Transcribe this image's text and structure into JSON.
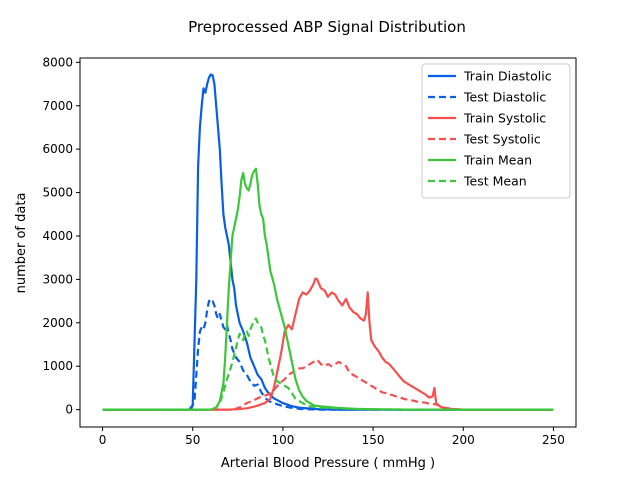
{
  "chart_data": {
    "type": "line",
    "title": "Preprocessed ABP Signal Distribution",
    "xlabel": "Arterial Blood Pressure ( mmHg )",
    "ylabel": "number of data",
    "xlim": [
      -12.5,
      262.5
    ],
    "ylim": [
      -400,
      8100
    ],
    "xticks": [
      0,
      50,
      100,
      150,
      200,
      250
    ],
    "yticks": [
      0,
      1000,
      2000,
      3000,
      4000,
      5000,
      6000,
      7000,
      8000
    ],
    "legend_position": "top-right",
    "grid": false,
    "series": [
      {
        "name": "Train Diastolic",
        "color": "#0a5ee6",
        "dash": "solid",
        "points": [
          [
            0,
            0
          ],
          [
            48,
            0
          ],
          [
            50,
            100
          ],
          [
            52,
            3000
          ],
          [
            53,
            5600
          ],
          [
            54,
            6500
          ],
          [
            55,
            7000
          ],
          [
            56,
            7400
          ],
          [
            57,
            7300
          ],
          [
            58,
            7500
          ],
          [
            59,
            7650
          ],
          [
            60,
            7720
          ],
          [
            61,
            7700
          ],
          [
            62,
            7500
          ],
          [
            63,
            7000
          ],
          [
            64,
            6500
          ],
          [
            65,
            6000
          ],
          [
            66,
            5200
          ],
          [
            67,
            4500
          ],
          [
            68,
            4200
          ],
          [
            69,
            4000
          ],
          [
            70,
            3800
          ],
          [
            71,
            3400
          ],
          [
            72,
            3000
          ],
          [
            73,
            2800
          ],
          [
            74,
            2400
          ],
          [
            75,
            2200
          ],
          [
            76,
            2000
          ],
          [
            78,
            1800
          ],
          [
            80,
            1550
          ],
          [
            82,
            1200
          ],
          [
            84,
            1000
          ],
          [
            86,
            800
          ],
          [
            88,
            700
          ],
          [
            90,
            500
          ],
          [
            92,
            380
          ],
          [
            95,
            260
          ],
          [
            100,
            150
          ],
          [
            105,
            80
          ],
          [
            110,
            40
          ],
          [
            120,
            10
          ],
          [
            130,
            0
          ],
          [
            250,
            0
          ]
        ]
      },
      {
        "name": "Test Diastolic",
        "color": "#0a5ee6",
        "dash": "dashed",
        "points": [
          [
            0,
            0
          ],
          [
            49,
            0
          ],
          [
            51,
            200
          ],
          [
            53,
            1400
          ],
          [
            54,
            1800
          ],
          [
            55,
            1900
          ],
          [
            56,
            1850
          ],
          [
            57,
            2000
          ],
          [
            58,
            2300
          ],
          [
            59,
            2500
          ],
          [
            60,
            2550
          ],
          [
            61,
            2500
          ],
          [
            62,
            2400
          ],
          [
            63,
            2200
          ],
          [
            64,
            2100
          ],
          [
            65,
            2200
          ],
          [
            66,
            2050
          ],
          [
            67,
            1900
          ],
          [
            68,
            1850
          ],
          [
            69,
            1950
          ],
          [
            70,
            1750
          ],
          [
            71,
            1600
          ],
          [
            72,
            1400
          ],
          [
            73,
            1300
          ],
          [
            74,
            1200
          ],
          [
            76,
            1100
          ],
          [
            78,
            900
          ],
          [
            80,
            800
          ],
          [
            82,
            650
          ],
          [
            84,
            550
          ],
          [
            86,
            580
          ],
          [
            88,
            400
          ],
          [
            90,
            280
          ],
          [
            92,
            200
          ],
          [
            95,
            150
          ],
          [
            100,
            80
          ],
          [
            105,
            40
          ],
          [
            110,
            15
          ],
          [
            120,
            0
          ],
          [
            250,
            0
          ]
        ]
      },
      {
        "name": "Train Systolic",
        "color": "#f5504f",
        "dash": "solid",
        "points": [
          [
            0,
            0
          ],
          [
            70,
            0
          ],
          [
            75,
            10
          ],
          [
            80,
            30
          ],
          [
            85,
            80
          ],
          [
            90,
            150
          ],
          [
            93,
            250
          ],
          [
            95,
            500
          ],
          [
            97,
            900
          ],
          [
            99,
            1300
          ],
          [
            101,
            1800
          ],
          [
            103,
            1950
          ],
          [
            105,
            1850
          ],
          [
            107,
            2200
          ],
          [
            109,
            2550
          ],
          [
            111,
            2700
          ],
          [
            113,
            2650
          ],
          [
            115,
            2750
          ],
          [
            117,
            2900
          ],
          [
            118,
            3020
          ],
          [
            119,
            3000
          ],
          [
            121,
            2800
          ],
          [
            123,
            2750
          ],
          [
            125,
            2600
          ],
          [
            127,
            2700
          ],
          [
            129,
            2650
          ],
          [
            131,
            2500
          ],
          [
            133,
            2400
          ],
          [
            135,
            2550
          ],
          [
            137,
            2350
          ],
          [
            139,
            2250
          ],
          [
            141,
            2200
          ],
          [
            143,
            2100
          ],
          [
            145,
            2050
          ],
          [
            146,
            2200
          ],
          [
            147,
            2700
          ],
          [
            148,
            2000
          ],
          [
            149,
            1600
          ],
          [
            151,
            1450
          ],
          [
            153,
            1350
          ],
          [
            155,
            1200
          ],
          [
            157,
            1100
          ],
          [
            159,
            1050
          ],
          [
            161,
            950
          ],
          [
            163,
            850
          ],
          [
            165,
            750
          ],
          [
            167,
            650
          ],
          [
            169,
            600
          ],
          [
            171,
            550
          ],
          [
            173,
            500
          ],
          [
            175,
            450
          ],
          [
            177,
            400
          ],
          [
            179,
            350
          ],
          [
            181,
            280
          ],
          [
            183,
            300
          ],
          [
            184,
            500
          ],
          [
            185,
            150
          ],
          [
            187,
            80
          ],
          [
            189,
            40
          ],
          [
            192,
            20
          ],
          [
            196,
            10
          ],
          [
            200,
            0
          ],
          [
            250,
            0
          ]
        ]
      },
      {
        "name": "Test Systolic",
        "color": "#f5504f",
        "dash": "dashed",
        "points": [
          [
            0,
            0
          ],
          [
            65,
            0
          ],
          [
            72,
            0
          ],
          [
            76,
            50
          ],
          [
            80,
            150
          ],
          [
            84,
            220
          ],
          [
            88,
            300
          ],
          [
            92,
            350
          ],
          [
            95,
            450
          ],
          [
            98,
            600
          ],
          [
            101,
            700
          ],
          [
            103,
            800
          ],
          [
            105,
            850
          ],
          [
            107,
            900
          ],
          [
            109,
            950
          ],
          [
            111,
            950
          ],
          [
            113,
            1000
          ],
          [
            115,
            1050
          ],
          [
            117,
            1100
          ],
          [
            119,
            1150
          ],
          [
            121,
            1050
          ],
          [
            123,
            1000
          ],
          [
            125,
            1050
          ],
          [
            127,
            1000
          ],
          [
            129,
            1050
          ],
          [
            131,
            1100
          ],
          [
            133,
            1050
          ],
          [
            135,
            1000
          ],
          [
            137,
            850
          ],
          [
            139,
            800
          ],
          [
            141,
            750
          ],
          [
            143,
            700
          ],
          [
            145,
            650
          ],
          [
            147,
            600
          ],
          [
            149,
            550
          ],
          [
            151,
            500
          ],
          [
            153,
            450
          ],
          [
            155,
            400
          ],
          [
            157,
            380
          ],
          [
            159,
            350
          ],
          [
            161,
            330
          ],
          [
            163,
            300
          ],
          [
            165,
            280
          ],
          [
            167,
            250
          ],
          [
            169,
            230
          ],
          [
            171,
            220
          ],
          [
            173,
            200
          ],
          [
            175,
            180
          ],
          [
            177,
            170
          ],
          [
            179,
            160
          ],
          [
            181,
            140
          ],
          [
            183,
            130
          ],
          [
            185,
            120
          ],
          [
            187,
            80
          ],
          [
            189,
            50
          ],
          [
            192,
            30
          ],
          [
            196,
            10
          ],
          [
            200,
            0
          ],
          [
            250,
            0
          ]
        ]
      },
      {
        "name": "Train Mean",
        "color": "#3ac73a",
        "dash": "solid",
        "points": [
          [
            0,
            0
          ],
          [
            60,
            0
          ],
          [
            63,
            50
          ],
          [
            65,
            200
          ],
          [
            67,
            600
          ],
          [
            68,
            1200
          ],
          [
            69,
            2000
          ],
          [
            70,
            2800
          ],
          [
            71,
            3400
          ],
          [
            72,
            4000
          ],
          [
            73,
            4200
          ],
          [
            74,
            4400
          ],
          [
            75,
            4600
          ],
          [
            76,
            4900
          ],
          [
            77,
            5300
          ],
          [
            78,
            5450
          ],
          [
            79,
            5200
          ],
          [
            80,
            5100
          ],
          [
            81,
            5050
          ],
          [
            82,
            5200
          ],
          [
            83,
            5400
          ],
          [
            84,
            5500
          ],
          [
            85,
            5550
          ],
          [
            86,
            5200
          ],
          [
            87,
            4700
          ],
          [
            88,
            4500
          ],
          [
            89,
            4400
          ],
          [
            90,
            4000
          ],
          [
            91,
            3800
          ],
          [
            92,
            3500
          ],
          [
            93,
            3200
          ],
          [
            95,
            2900
          ],
          [
            97,
            2500
          ],
          [
            99,
            2200
          ],
          [
            101,
            1900
          ],
          [
            103,
            1500
          ],
          [
            105,
            1100
          ],
          [
            107,
            700
          ],
          [
            109,
            450
          ],
          [
            111,
            300
          ],
          [
            113,
            200
          ],
          [
            115,
            150
          ],
          [
            117,
            100
          ],
          [
            120,
            80
          ],
          [
            125,
            60
          ],
          [
            130,
            40
          ],
          [
            140,
            20
          ],
          [
            150,
            10
          ],
          [
            170,
            0
          ],
          [
            250,
            0
          ]
        ]
      },
      {
        "name": "Test Mean",
        "color": "#3ac73a",
        "dash": "dashed",
        "points": [
          [
            0,
            0
          ],
          [
            60,
            0
          ],
          [
            63,
            50
          ],
          [
            65,
            150
          ],
          [
            67,
            400
          ],
          [
            69,
            700
          ],
          [
            71,
            950
          ],
          [
            73,
            1250
          ],
          [
            75,
            1600
          ],
          [
            76,
            1750
          ],
          [
            77,
            1650
          ],
          [
            78,
            1600
          ],
          [
            79,
            1750
          ],
          [
            80,
            1800
          ],
          [
            81,
            1700
          ],
          [
            82,
            1850
          ],
          [
            83,
            1950
          ],
          [
            84,
            2050
          ],
          [
            85,
            2100
          ],
          [
            86,
            2000
          ],
          [
            87,
            1950
          ],
          [
            88,
            1900
          ],
          [
            89,
            1700
          ],
          [
            90,
            1600
          ],
          [
            91,
            1400
          ],
          [
            92,
            1200
          ],
          [
            93,
            1050
          ],
          [
            94,
            900
          ],
          [
            95,
            750
          ],
          [
            97,
            650
          ],
          [
            99,
            600
          ],
          [
            101,
            550
          ],
          [
            103,
            500
          ],
          [
            105,
            380
          ],
          [
            107,
            250
          ],
          [
            109,
            200
          ],
          [
            111,
            150
          ],
          [
            113,
            100
          ],
          [
            115,
            80
          ],
          [
            120,
            50
          ],
          [
            130,
            30
          ],
          [
            140,
            15
          ],
          [
            150,
            5
          ],
          [
            170,
            0
          ],
          [
            250,
            0
          ]
        ]
      }
    ]
  }
}
